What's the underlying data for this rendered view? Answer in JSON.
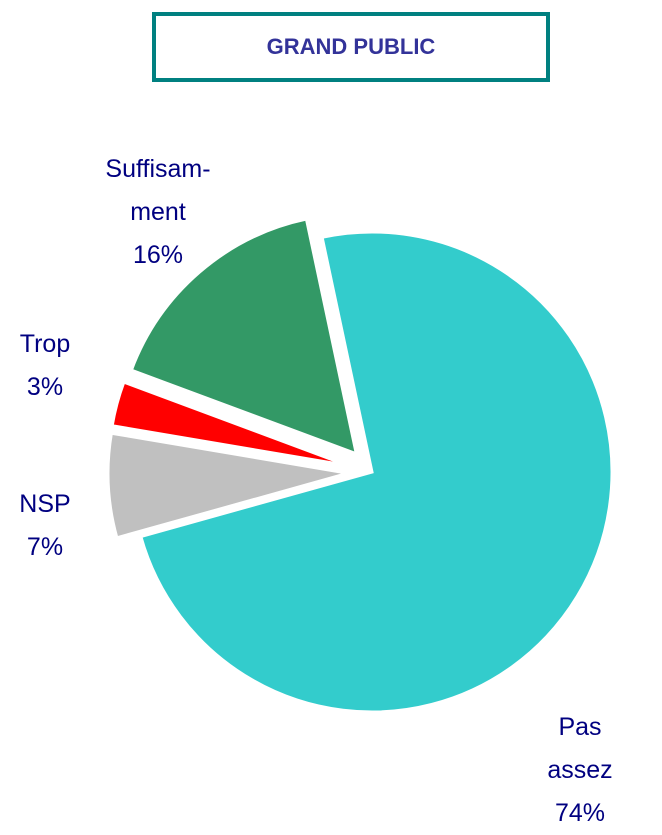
{
  "chart_data": {
    "type": "pie",
    "title": "GRAND PUBLIC",
    "categories": [
      "Pas assez",
      "NSP",
      "Trop",
      "Suffisam-\nment"
    ],
    "values": [
      74,
      7,
      3,
      16
    ],
    "value_labels": [
      "74%",
      "7%",
      "3%",
      "16%"
    ],
    "colors": [
      "#33CCCC",
      "#C0C0C0",
      "#FF0000",
      "#339966"
    ]
  }
}
